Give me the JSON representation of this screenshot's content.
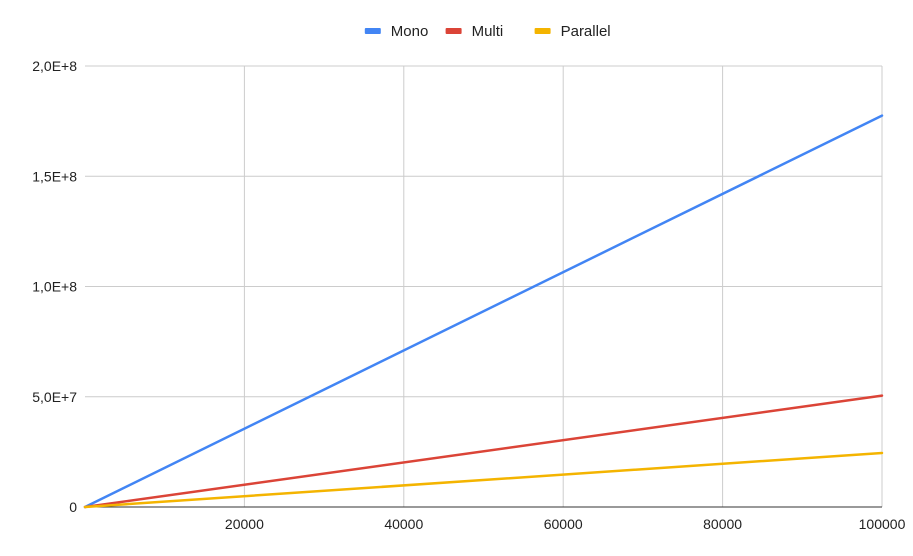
{
  "chart_data": {
    "type": "line",
    "x": [
      0,
      100000
    ],
    "series": [
      {
        "name": "Mono",
        "color": "#4285f4",
        "values": [
          0,
          177500000
        ]
      },
      {
        "name": "Multi",
        "color": "#db4437",
        "values": [
          0,
          50500000
        ]
      },
      {
        "name": "Parallel",
        "color": "#f4b400",
        "values": [
          0,
          24500000
        ]
      }
    ],
    "xlim": [
      0,
      100000
    ],
    "ylim": [
      0,
      200000000
    ],
    "x_ticks": [
      20000,
      40000,
      60000,
      80000,
      100000
    ],
    "x_tick_labels": [
      "20000",
      "40000",
      "60000",
      "80000",
      "100000"
    ],
    "y_ticks": [
      0,
      50000000,
      100000000,
      150000000,
      200000000
    ],
    "y_tick_labels": [
      "0",
      "5,0E+7",
      "1,0E+8",
      "1,5E+8",
      "2,0E+8"
    ],
    "grid": true,
    "legend_position": "top-center",
    "title": "",
    "xlabel": "",
    "ylabel": ""
  }
}
